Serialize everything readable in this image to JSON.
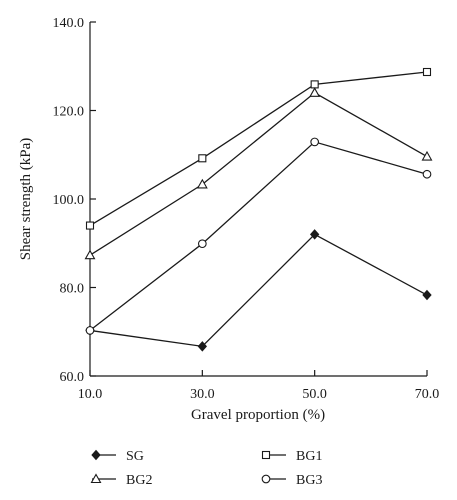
{
  "chart_data": {
    "type": "line",
    "xlabel": "Gravel proportion (%)",
    "ylabel": "Shear strength (kPa)",
    "x": [
      10,
      30,
      50,
      70
    ],
    "x_tick_labels": [
      "10.0",
      "30.0",
      "50.0",
      "70.0"
    ],
    "xlim": [
      10,
      70
    ],
    "ylim": [
      60,
      140
    ],
    "y_ticks": [
      60,
      80,
      100,
      120,
      140
    ],
    "y_tick_labels": [
      "60.0",
      "80.0",
      "100.0",
      "120.0",
      "140.0"
    ],
    "grid": false,
    "legend_position": "bottom",
    "series": [
      {
        "name": "SG",
        "marker": "filled-diamond",
        "values": [
          70.3,
          66.7,
          92.0,
          78.3
        ]
      },
      {
        "name": "BG1",
        "marker": "open-square",
        "values": [
          94.0,
          109.2,
          125.9,
          128.7
        ]
      },
      {
        "name": "BG2",
        "marker": "open-triangle",
        "values": [
          87.3,
          103.3,
          124.0,
          109.6
        ]
      },
      {
        "name": "BG3",
        "marker": "open-circle",
        "values": [
          70.3,
          89.9,
          112.9,
          105.6
        ]
      }
    ],
    "colors": {
      "line": "#1a1a1a",
      "marker_fill_open": "#ffffff",
      "marker_fill_solid": "#1a1a1a"
    }
  }
}
